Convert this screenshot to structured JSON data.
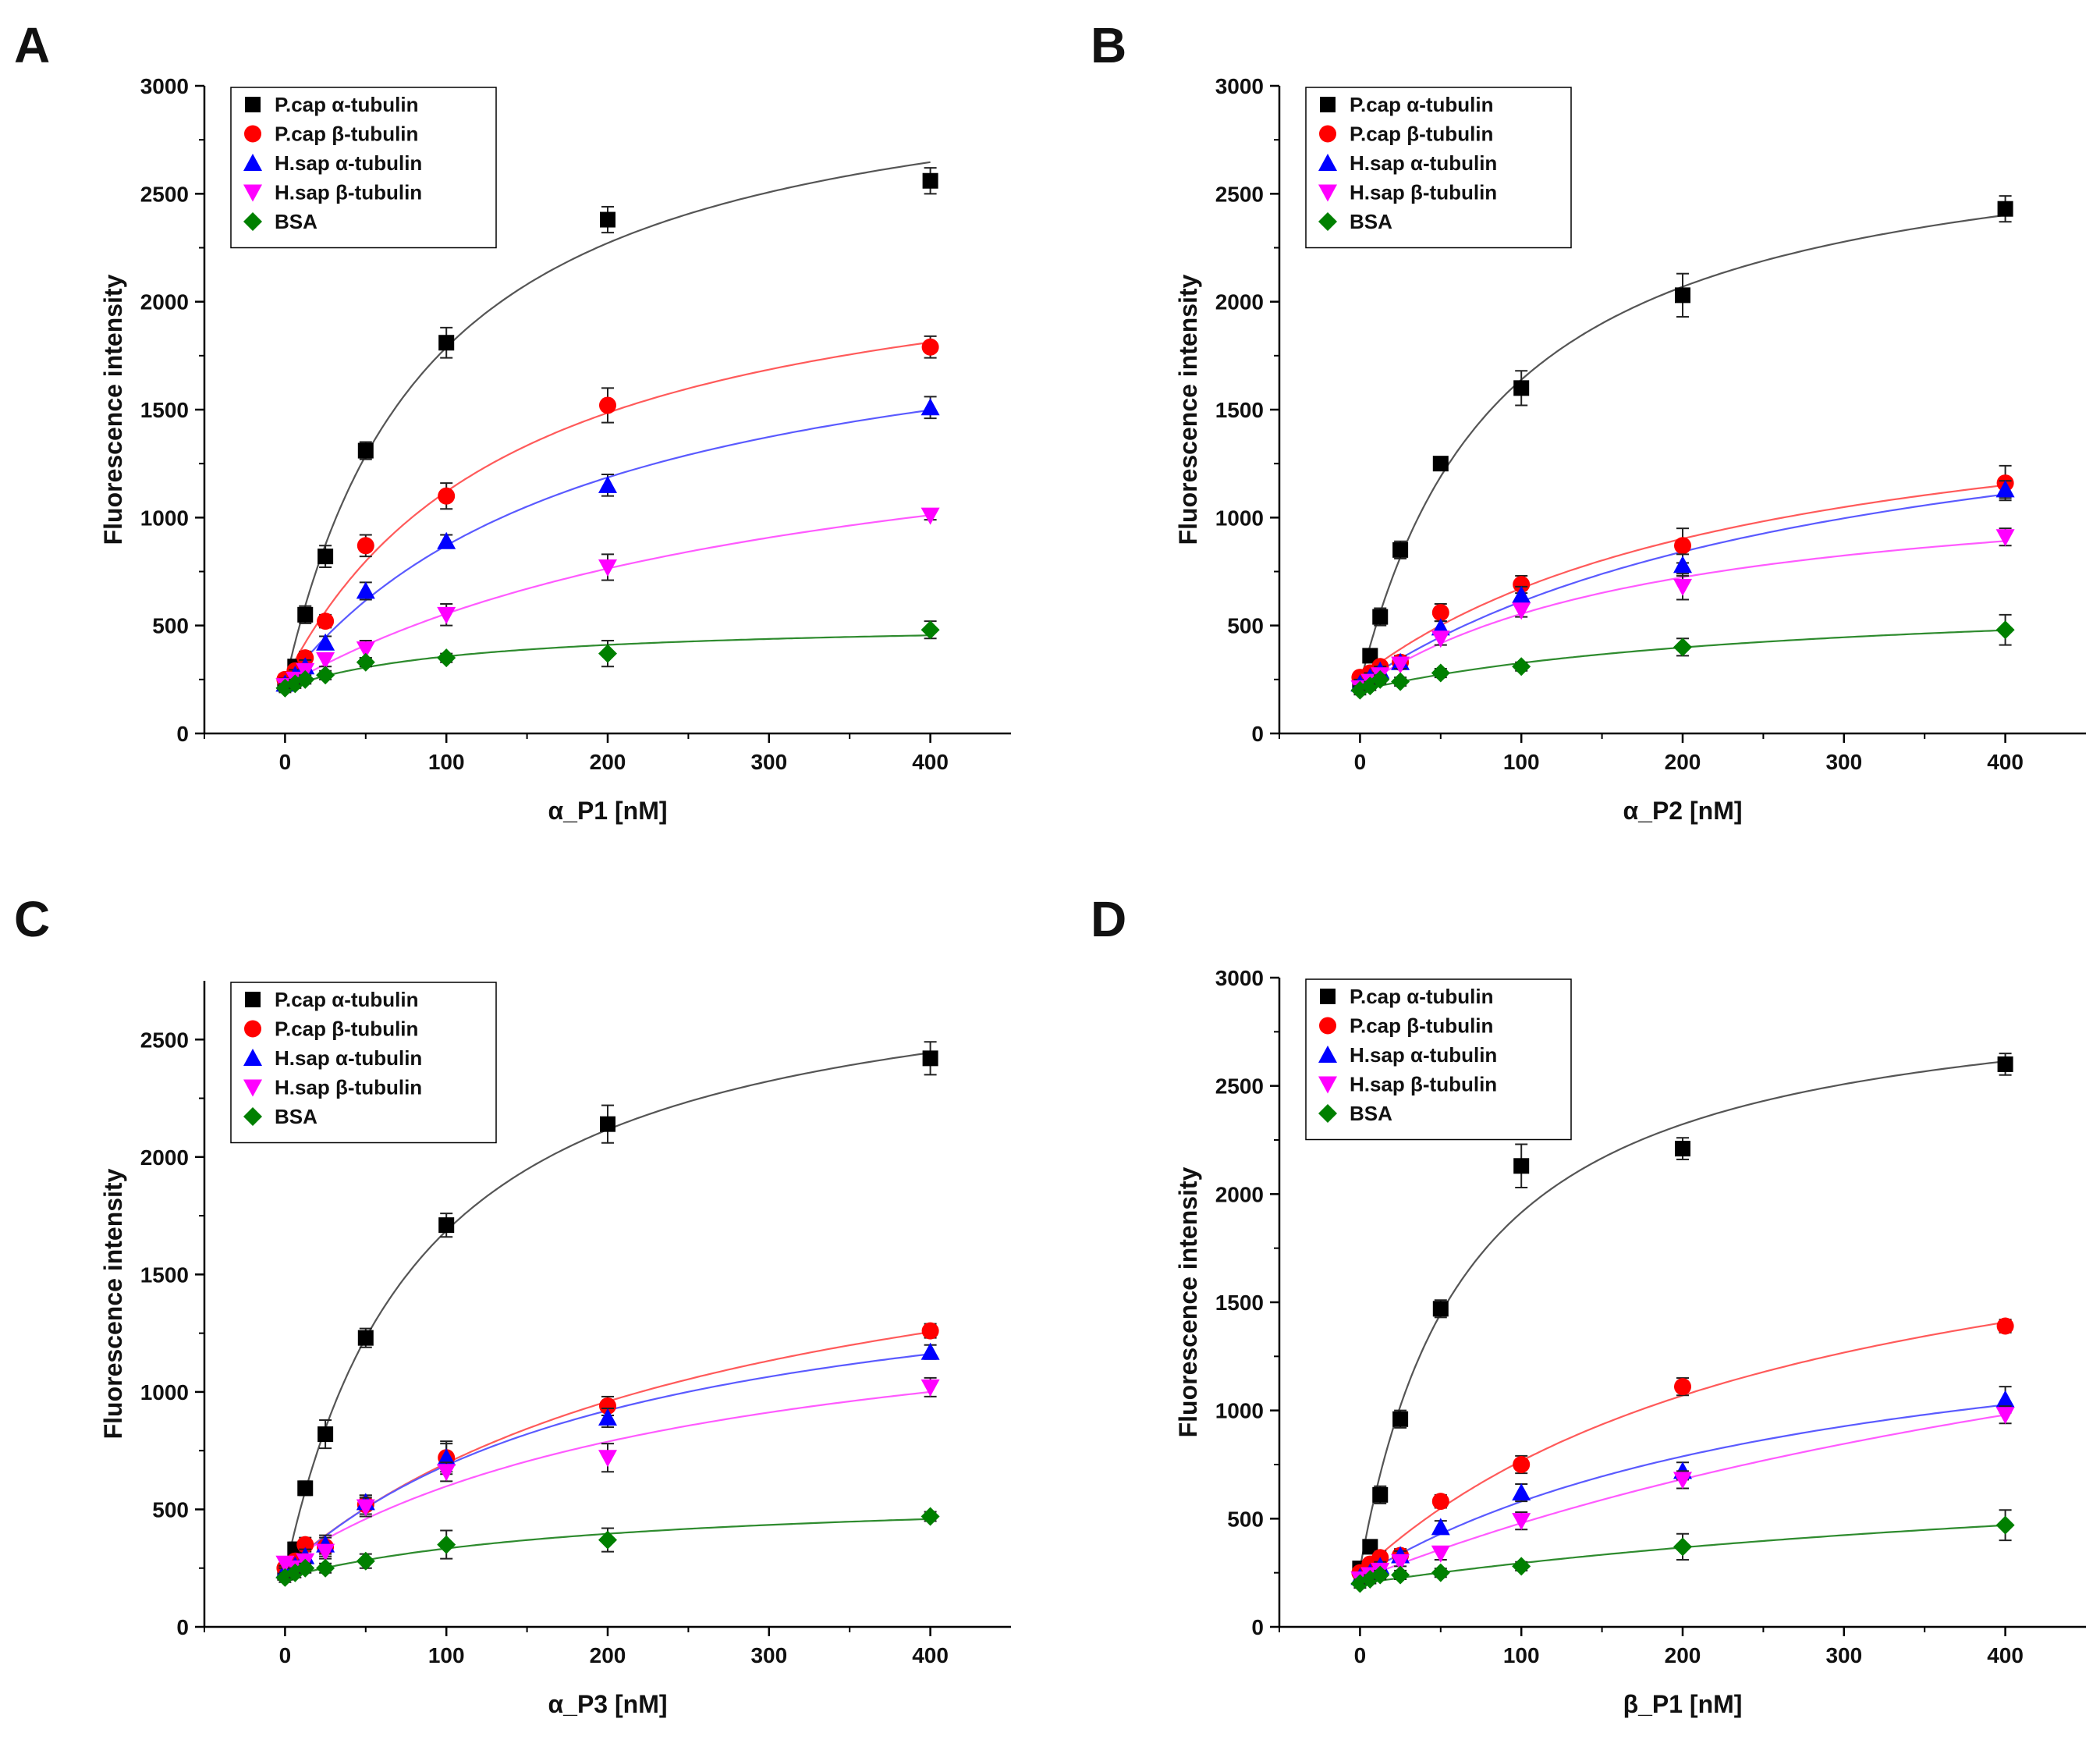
{
  "figure": {
    "background": "#ffffff"
  },
  "series_style": [
    {
      "name": "P.cap α-tubulin",
      "marker": "square",
      "color": "#000000",
      "fit_color": "#555555"
    },
    {
      "name": "P.cap β-tubulin",
      "marker": "circle",
      "color": "#ff0000",
      "fit_color": "#ff5a5a"
    },
    {
      "name": "H.sap α-tubulin",
      "marker": "triangle-up",
      "color": "#0000ff",
      "fit_color": "#5a5aff"
    },
    {
      "name": "H.sap β-tubulin",
      "marker": "triangle-down",
      "color": "#ff00ff",
      "fit_color": "#ff5aff"
    },
    {
      "name": "BSA",
      "marker": "diamond",
      "color": "#008000",
      "fit_color": "#2e8b2e"
    }
  ],
  "chart_data": [
    {
      "panel": "A",
      "type": "scatter",
      "xlabel": "α_P1 [nM]",
      "ylabel": "Fluorescence intensity",
      "xlim": [
        -50,
        450
      ],
      "ylim": [
        0,
        3000
      ],
      "xticks": [
        0,
        100,
        200,
        300,
        400
      ],
      "yticks": [
        0,
        500,
        1000,
        1500,
        2000,
        2500,
        3000
      ],
      "legend_position": "top-left",
      "x": [
        0,
        6.25,
        12.5,
        25,
        50,
        100,
        200,
        400
      ],
      "series": [
        {
          "name": "P.cap α-tubulin",
          "values": [
            230,
            310,
            550,
            820,
            1310,
            1810,
            2380,
            2560
          ],
          "errors": [
            30,
            30,
            40,
            50,
            40,
            70,
            60,
            60
          ]
        },
        {
          "name": "P.cap β-tubulin",
          "values": [
            250,
            290,
            350,
            520,
            870,
            1100,
            1520,
            1790
          ],
          "errors": [
            25,
            25,
            30,
            30,
            50,
            60,
            80,
            50
          ]
        },
        {
          "name": "H.sap α-tubulin",
          "values": [
            230,
            270,
            310,
            420,
            660,
            890,
            1150,
            1510
          ],
          "errors": [
            25,
            25,
            30,
            30,
            40,
            30,
            50,
            50
          ]
        },
        {
          "name": "H.sap β-tubulin",
          "values": [
            220,
            250,
            290,
            340,
            390,
            550,
            770,
            1010
          ],
          "errors": [
            25,
            25,
            30,
            30,
            40,
            50,
            60,
            20
          ]
        },
        {
          "name": "BSA",
          "values": [
            210,
            230,
            250,
            270,
            330,
            350,
            370,
            480
          ],
          "errors": [
            20,
            20,
            20,
            20,
            20,
            20,
            60,
            40
          ]
        }
      ]
    },
    {
      "panel": "B",
      "type": "scatter",
      "xlabel": "α_P2 [nM]",
      "ylabel": "Fluorescence intensity",
      "xlim": [
        -50,
        450
      ],
      "ylim": [
        0,
        3000
      ],
      "xticks": [
        0,
        100,
        200,
        300,
        400
      ],
      "yticks": [
        0,
        500,
        1000,
        1500,
        2000,
        2500,
        3000
      ],
      "legend_position": "top-left",
      "x": [
        0,
        6.25,
        12.5,
        25,
        50,
        100,
        200,
        400
      ],
      "series": [
        {
          "name": "P.cap α-tubulin",
          "values": [
            230,
            360,
            540,
            850,
            1250,
            1600,
            2030,
            2430
          ],
          "errors": [
            25,
            30,
            40,
            40,
            30,
            80,
            100,
            60
          ]
        },
        {
          "name": "P.cap β-tubulin",
          "values": [
            260,
            280,
            310,
            330,
            560,
            690,
            870,
            1160
          ],
          "errors": [
            20,
            20,
            20,
            30,
            40,
            40,
            80,
            80
          ]
        },
        {
          "name": "H.sap α-tubulin",
          "values": [
            230,
            260,
            290,
            330,
            490,
            640,
            780,
            1130
          ],
          "errors": [
            20,
            20,
            20,
            20,
            30,
            40,
            50,
            40
          ]
        },
        {
          "name": "H.sap β-tubulin",
          "values": [
            210,
            240,
            270,
            320,
            440,
            570,
            680,
            910
          ],
          "errors": [
            20,
            20,
            20,
            20,
            30,
            30,
            60,
            40
          ]
        },
        {
          "name": "BSA",
          "values": [
            200,
            220,
            250,
            240,
            280,
            310,
            400,
            480
          ],
          "errors": [
            20,
            20,
            20,
            20,
            20,
            20,
            40,
            70
          ]
        }
      ]
    },
    {
      "panel": "C",
      "type": "scatter",
      "xlabel": "α_P3 [nM]",
      "ylabel": "Fluorescence intensity",
      "xlim": [
        -50,
        450
      ],
      "ylim": [
        0,
        2750
      ],
      "xticks": [
        0,
        100,
        200,
        300,
        400
      ],
      "yticks": [
        0,
        500,
        1000,
        1500,
        2000,
        2500
      ],
      "legend_position": "top-left",
      "x": [
        0,
        6.25,
        12.5,
        25,
        50,
        100,
        200,
        400
      ],
      "series": [
        {
          "name": "P.cap α-tubulin",
          "values": [
            230,
            330,
            590,
            820,
            1230,
            1710,
            2140,
            2420
          ],
          "errors": [
            25,
            30,
            30,
            60,
            40,
            50,
            80,
            70
          ]
        },
        {
          "name": "P.cap β-tubulin",
          "values": [
            250,
            280,
            350,
            340,
            520,
            720,
            940,
            1260
          ],
          "errors": [
            20,
            20,
            30,
            40,
            40,
            60,
            40,
            30
          ]
        },
        {
          "name": "H.sap α-tubulin",
          "values": [
            240,
            260,
            300,
            350,
            530,
            720,
            890,
            1170
          ],
          "errors": [
            20,
            20,
            30,
            40,
            30,
            70,
            40,
            30
          ]
        },
        {
          "name": "H.sap β-tubulin",
          "values": [
            270,
            250,
            280,
            320,
            510,
            660,
            720,
            1020
          ],
          "errors": [
            20,
            20,
            30,
            30,
            40,
            40,
            60,
            40
          ]
        },
        {
          "name": "BSA",
          "values": [
            210,
            230,
            250,
            250,
            280,
            350,
            370,
            470
          ],
          "errors": [
            20,
            20,
            20,
            20,
            30,
            60,
            50,
            20
          ]
        }
      ]
    },
    {
      "panel": "D",
      "type": "scatter",
      "xlabel": "β_P1 [nM]",
      "ylabel": "Fluorescence intensity",
      "xlim": [
        -50,
        450
      ],
      "ylim": [
        0,
        3000
      ],
      "xticks": [
        0,
        100,
        200,
        300,
        400
      ],
      "yticks": [
        0,
        500,
        1000,
        1500,
        2000,
        2500,
        3000
      ],
      "legend_position": "top-left",
      "x": [
        0,
        6.25,
        12.5,
        25,
        50,
        100,
        200,
        400
      ],
      "series": [
        {
          "name": "P.cap α-tubulin",
          "values": [
            270,
            370,
            610,
            960,
            1470,
            2130,
            2210,
            2600
          ],
          "errors": [
            25,
            30,
            40,
            40,
            40,
            100,
            50,
            50
          ]
        },
        {
          "name": "P.cap β-tubulin",
          "values": [
            250,
            290,
            320,
            330,
            580,
            750,
            1110,
            1390
          ],
          "errors": [
            20,
            20,
            30,
            30,
            30,
            40,
            40,
            30
          ]
        },
        {
          "name": "H.sap α-tubulin",
          "values": [
            230,
            250,
            280,
            330,
            460,
            620,
            720,
            1050
          ],
          "errors": [
            20,
            20,
            20,
            20,
            30,
            40,
            40,
            60
          ]
        },
        {
          "name": "H.sap β-tubulin",
          "values": [
            220,
            240,
            260,
            300,
            340,
            490,
            680,
            980
          ],
          "errors": [
            20,
            20,
            20,
            20,
            30,
            40,
            40,
            40
          ]
        },
        {
          "name": "BSA",
          "values": [
            200,
            220,
            240,
            240,
            250,
            280,
            370,
            470
          ],
          "errors": [
            20,
            20,
            20,
            20,
            20,
            20,
            60,
            70
          ]
        }
      ]
    }
  ]
}
